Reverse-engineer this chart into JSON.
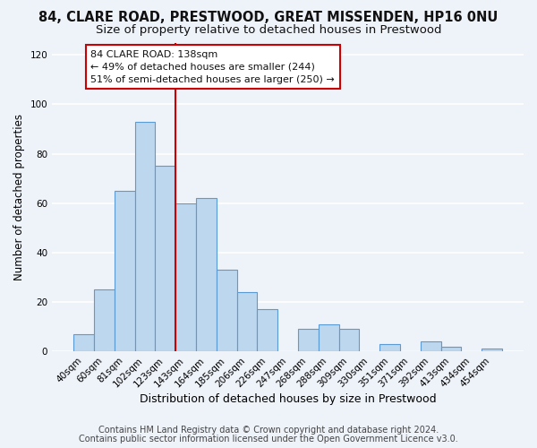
{
  "title": "84, CLARE ROAD, PRESTWOOD, GREAT MISSENDEN, HP16 0NU",
  "subtitle": "Size of property relative to detached houses in Prestwood",
  "xlabel": "Distribution of detached houses by size in Prestwood",
  "ylabel": "Number of detached properties",
  "bar_labels": [
    "40sqm",
    "60sqm",
    "81sqm",
    "102sqm",
    "123sqm",
    "143sqm",
    "164sqm",
    "185sqm",
    "206sqm",
    "226sqm",
    "247sqm",
    "268sqm",
    "288sqm",
    "309sqm",
    "330sqm",
    "351sqm",
    "371sqm",
    "392sqm",
    "413sqm",
    "434sqm",
    "454sqm"
  ],
  "bar_values": [
    7,
    25,
    65,
    93,
    75,
    60,
    62,
    33,
    24,
    17,
    0,
    9,
    11,
    9,
    0,
    3,
    0,
    4,
    2,
    0,
    1
  ],
  "bar_color": "#bdd7ee",
  "bar_edge_color": "#5b9bd5",
  "vline_color": "#cc0000",
  "vline_x_index": 5,
  "annotation_line1": "84 CLARE ROAD: 138sqm",
  "annotation_line2": "← 49% of detached houses are smaller (244)",
  "annotation_line3": "51% of semi-detached houses are larger (250) →",
  "ylim": [
    0,
    125
  ],
  "yticks": [
    0,
    20,
    40,
    60,
    80,
    100,
    120
  ],
  "footer1": "Contains HM Land Registry data © Crown copyright and database right 2024.",
  "footer2": "Contains public sector information licensed under the Open Government Licence v3.0.",
  "bg_color": "#eef2f9",
  "plot_bg_color": "#eef2f9",
  "title_fontsize": 10.5,
  "subtitle_fontsize": 9.5,
  "xlabel_fontsize": 9,
  "ylabel_fontsize": 8.5,
  "tick_fontsize": 7.5,
  "annotation_fontsize": 8,
  "footer_fontsize": 7
}
